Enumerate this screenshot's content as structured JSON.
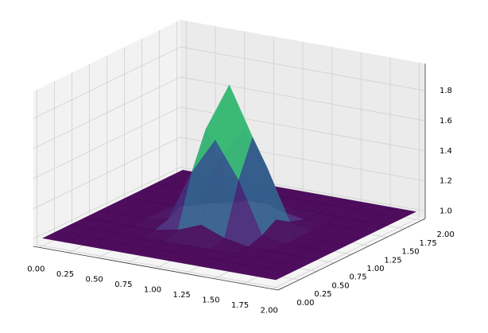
{
  "chart_data": {
    "type": "surface",
    "colormap": "viridis",
    "x": [
      0,
      0.2,
      0.4,
      0.6,
      0.8,
      1.0,
      1.2,
      1.4,
      1.6,
      1.8,
      2.0
    ],
    "y": [
      0,
      0.2,
      0.4,
      0.6,
      0.8,
      1.0,
      1.2,
      1.4,
      1.6,
      1.8,
      2.0
    ],
    "z": [
      [
        1,
        1,
        1,
        1,
        1,
        1,
        1,
        1,
        1,
        1,
        1
      ],
      [
        1,
        1,
        1,
        1,
        1,
        1,
        1,
        1,
        1,
        1,
        1
      ],
      [
        1,
        1,
        1,
        1,
        1,
        1,
        1,
        1,
        1,
        1,
        1
      ],
      [
        1,
        1,
        1,
        1,
        1.03,
        1.09,
        1.03,
        1,
        1,
        1,
        1
      ],
      [
        1,
        1,
        1,
        1.03,
        1.37,
        1.61,
        1.37,
        1.03,
        1,
        1,
        1
      ],
      [
        1,
        1,
        1,
        1.09,
        1.61,
        1.93,
        1.61,
        1.09,
        1,
        1,
        1
      ],
      [
        1,
        1,
        1,
        1.03,
        1.37,
        1.61,
        1.37,
        1.03,
        1,
        1,
        1
      ],
      [
        1,
        1,
        1,
        1,
        1.03,
        1.09,
        1.03,
        1,
        1,
        1,
        1
      ],
      [
        1,
        1,
        1,
        1,
        1,
        1,
        1,
        1,
        1,
        1,
        1
      ],
      [
        1,
        1,
        1,
        1,
        1,
        1,
        1,
        1,
        1,
        1,
        1
      ],
      [
        1,
        1,
        1,
        1,
        1,
        1,
        1,
        1,
        1,
        1,
        1
      ]
    ],
    "xlim": [
      -0.05,
      2.05
    ],
    "ylim": [
      -0.05,
      2.05
    ],
    "zlim": [
      0.95,
      1.98
    ],
    "xticks": [
      {
        "value": 0,
        "label": "0.00"
      },
      {
        "value": 0.25,
        "label": "0.25"
      },
      {
        "value": 0.5,
        "label": "0.50"
      },
      {
        "value": 0.75,
        "label": "0.75"
      },
      {
        "value": 1,
        "label": "1.00"
      },
      {
        "value": 1.25,
        "label": "1.25"
      },
      {
        "value": 1.5,
        "label": "1.50"
      },
      {
        "value": 1.75,
        "label": "1.75"
      },
      {
        "value": 2,
        "label": "2.00"
      }
    ],
    "yticks": [
      {
        "value": 0,
        "label": "0.00"
      },
      {
        "value": 0.25,
        "label": "0.25"
      },
      {
        "value": 0.5,
        "label": "0.50"
      },
      {
        "value": 0.75,
        "label": "0.75"
      },
      {
        "value": 1,
        "label": "1.00"
      },
      {
        "value": 1.25,
        "label": "1.25"
      },
      {
        "value": 1.5,
        "label": "1.50"
      },
      {
        "value": 1.75,
        "label": "1.75"
      },
      {
        "value": 2,
        "label": "2.00"
      }
    ],
    "zticks": [
      {
        "value": 1,
        "label": "1.0"
      },
      1.2,
      1.4,
      1.6,
      1.8
    ],
    "grid": true
  }
}
